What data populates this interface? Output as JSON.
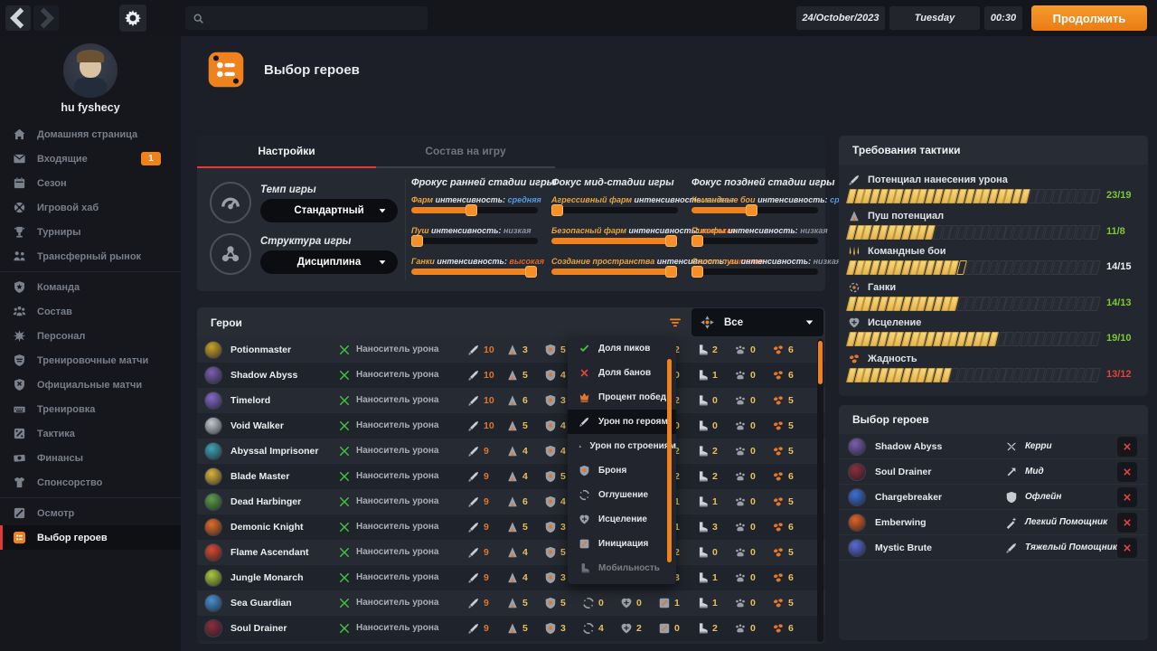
{
  "topbar": {
    "date": "24/October/2023",
    "day": "Tuesday",
    "time": "00:30",
    "continue_label": "Продолжить",
    "search_placeholder": ""
  },
  "sidebar": {
    "username": "hu fyshecy",
    "groups": [
      {
        "items": [
          {
            "icon": "home",
            "label": "Домашняя страница"
          },
          {
            "icon": "mail",
            "label": "Входящие",
            "badge": "1"
          },
          {
            "icon": "calendar",
            "label": "Сезон"
          },
          {
            "icon": "hub",
            "label": "Игровой хаб"
          },
          {
            "icon": "trophy",
            "label": "Турниры"
          },
          {
            "icon": "transfer",
            "label": "Трансферный рынок"
          }
        ]
      },
      {
        "items": [
          {
            "icon": "team",
            "label": "Команда"
          },
          {
            "icon": "roster",
            "label": "Состав"
          },
          {
            "icon": "staff",
            "label": "Персонал"
          },
          {
            "icon": "tmatch",
            "label": "Тренировочные матчи"
          },
          {
            "icon": "omatch",
            "label": "Официальные матчи"
          },
          {
            "icon": "train",
            "label": "Тренировка"
          },
          {
            "icon": "tactic",
            "label": "Тактика"
          },
          {
            "icon": "finance",
            "label": "Финансы"
          },
          {
            "icon": "sponsor",
            "label": "Спонсорство"
          }
        ]
      },
      {
        "items": [
          {
            "icon": "scout",
            "label": "Осмотр"
          },
          {
            "icon": "heropick",
            "label": "Выбор героев",
            "active": true
          }
        ]
      }
    ]
  },
  "page": {
    "title": "Выбор героев"
  },
  "settings": {
    "tabs": [
      {
        "label": "Настройки",
        "active": true
      },
      {
        "label": "Состав на игру",
        "active": false
      }
    ],
    "controls": [
      {
        "icon": "gauge",
        "label": "Темп игры",
        "value": "Стандартный"
      },
      {
        "icon": "structure",
        "label": "Структура игры",
        "value": "Дисциплина"
      }
    ],
    "intensity_word": "интенсивность:",
    "columns": [
      {
        "header": "Фрокус ранней стадии игры",
        "sliders": [
          {
            "name": "Фарм",
            "level": "средняя",
            "level_color": "blue",
            "percent": 47
          },
          {
            "name": "Пуш",
            "level": "низкая",
            "level_color": "gray",
            "percent": 4
          },
          {
            "name": "Ганки",
            "level": "высокая",
            "level_color": "orange",
            "percent": 94
          }
        ]
      },
      {
        "header": "Фокус мид-стадии игры",
        "sliders": [
          {
            "name": "Агрессивный фарм",
            "level": "низкая",
            "level_color": "gray",
            "percent": 4
          },
          {
            "name": "Безопасный фарм",
            "level": "высокая",
            "level_color": "orange",
            "percent": 94
          },
          {
            "name": "Создание пространства",
            "level": "высокая",
            "level_color": "orange",
            "percent": 94
          }
        ]
      },
      {
        "header": "Фокус поздней стадии игры",
        "sliders": [
          {
            "name": "Командные бои",
            "level": "средняя",
            "level_color": "blue",
            "percent": 47
          },
          {
            "name": "Пикофы",
            "level": "низкая",
            "level_color": "gray",
            "percent": 4
          },
          {
            "name": "Сплит пуш",
            "level": "низкая",
            "level_color": "gray",
            "percent": 4
          }
        ]
      }
    ]
  },
  "heroes_table": {
    "title": "Герои",
    "filter_value": "Все",
    "role_label": "Наноситель урона",
    "stat_columns": [
      "sword",
      "tower",
      "shield",
      "stun",
      "heal",
      "init",
      "boot",
      "paw",
      "coins"
    ],
    "rows": [
      {
        "name": "Potionmaster",
        "avatar": "#c9a22b",
        "stats": [
          10,
          3,
          5,
          0,
          0,
          2,
          2,
          0,
          6
        ]
      },
      {
        "name": "Shadow Abyss",
        "avatar": "#7a5fae",
        "stats": [
          10,
          5,
          4,
          0,
          0,
          0,
          1,
          0,
          6
        ]
      },
      {
        "name": "Timelord",
        "avatar": "#8468c9",
        "stats": [
          10,
          6,
          3,
          0,
          0,
          2,
          0,
          0,
          5
        ]
      },
      {
        "name": "Void Walker",
        "avatar": "#c3c8d1",
        "stats": [
          10,
          5,
          4,
          0,
          0,
          0,
          0,
          0,
          5
        ]
      },
      {
        "name": "Abyssal Imprisoner",
        "avatar": "#3fa3b5",
        "stats": [
          9,
          4,
          4,
          0,
          0,
          2,
          2,
          0,
          5
        ]
      },
      {
        "name": "Blade Master",
        "avatar": "#d8b33a",
        "stats": [
          9,
          4,
          5,
          0,
          0,
          2,
          2,
          0,
          6
        ]
      },
      {
        "name": "Dead Harbinger",
        "avatar": "#5a9e4a",
        "stats": [
          9,
          6,
          4,
          0,
          0,
          1,
          1,
          0,
          5
        ]
      },
      {
        "name": "Demonic Knight",
        "avatar": "#e06c2a",
        "stats": [
          9,
          5,
          3,
          0,
          0,
          1,
          3,
          0,
          6
        ]
      },
      {
        "name": "Flame Ascendant",
        "avatar": "#d84a33",
        "stats": [
          9,
          4,
          5,
          0,
          0,
          2,
          0,
          0,
          5
        ]
      },
      {
        "name": "Jungle Monarch",
        "avatar": "#a8c93f",
        "stats": [
          9,
          4,
          3,
          0,
          1,
          3,
          1,
          0,
          6
        ]
      },
      {
        "name": "Sea Guardian",
        "avatar": "#4a8fd4",
        "stats": [
          9,
          5,
          5,
          0,
          0,
          1,
          1,
          0,
          5
        ]
      },
      {
        "name": "Soul Drainer",
        "avatar": "#8c2f3e",
        "stats": [
          9,
          5,
          3,
          4,
          2,
          0,
          2,
          0,
          6
        ]
      }
    ]
  },
  "sort_menu": {
    "items": [
      {
        "icon": "check",
        "label": "Доля пиков"
      },
      {
        "icon": "xmark",
        "label": "Доля банов"
      },
      {
        "icon": "winrate",
        "label": "Процент побед"
      },
      {
        "icon": "sword",
        "label": "Урон по героям",
        "active": true
      },
      {
        "icon": "tower",
        "label": "Урон по строениям"
      },
      {
        "icon": "shield",
        "label": "Броня"
      },
      {
        "icon": "stun",
        "label": "Оглушение"
      },
      {
        "icon": "heal",
        "label": "Исцеление"
      },
      {
        "icon": "init",
        "label": "Инициация"
      },
      {
        "icon": "boot",
        "label": "Мобильность",
        "faded": true
      }
    ]
  },
  "tactics": {
    "title": "Требования тактики",
    "segments": 32,
    "bars": [
      {
        "icon": "sword",
        "label": "Потенциал нанесения урона",
        "value": "23/19",
        "status": "green"
      },
      {
        "icon": "tower",
        "label": "Пуш потенциал",
        "value": "11/8",
        "status": "green"
      },
      {
        "icon": "teamfight",
        "label": "Командные бои",
        "value": "14/15",
        "status": "white"
      },
      {
        "icon": "target",
        "label": "Ганки",
        "value": "14/13",
        "status": "green"
      },
      {
        "icon": "heal",
        "label": "Исцеление",
        "value": "19/10",
        "status": "green"
      },
      {
        "icon": "coins",
        "label": "Жадность",
        "value": "13/12",
        "status": "red"
      }
    ]
  },
  "picks": {
    "title": "Выбор героев",
    "rows": [
      {
        "name": "Shadow Abyss",
        "avatar": "#7a5fae",
        "role_icon": "carry",
        "role": "Керри"
      },
      {
        "name": "Soul Drainer",
        "avatar": "#8c2f3e",
        "role_icon": "mid",
        "role": "Мид"
      },
      {
        "name": "Chargebreaker",
        "avatar": "#3f6fd4",
        "role_icon": "offlane",
        "role": "Офлейн"
      },
      {
        "name": "Emberwing",
        "avatar": "#e0622a",
        "role_icon": "lightsup",
        "role": "Легкий Помощник"
      },
      {
        "name": "Mystic Brute",
        "avatar": "#5a6ad4",
        "role_icon": "hardsup",
        "role": "Тяжелый Помощник"
      }
    ]
  }
}
